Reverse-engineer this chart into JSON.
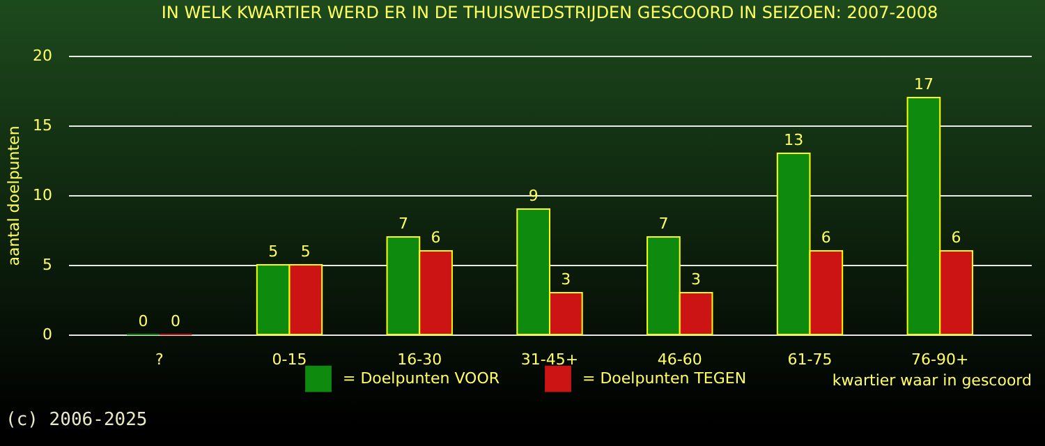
{
  "chart_data": {
    "type": "bar",
    "title": "IN WELK KWARTIER WERD ER IN DE THUISWEDSTRIJDEN GESCOORD IN SEIZOEN: 2007-2008",
    "xlabel": "kwartier waar in gescoord",
    "ylabel": "aantal doelpunten",
    "categories": [
      "?",
      "0-15",
      "16-30",
      "31-45+",
      "46-60",
      "61-75",
      "76-90+"
    ],
    "series": [
      {
        "name": "= Doelpunten VOOR",
        "color": "#0e8a0e",
        "values": [
          0,
          5,
          7,
          9,
          7,
          13,
          17
        ]
      },
      {
        "name": "= Doelpunten TEGEN",
        "color": "#cc1414",
        "values": [
          0,
          5,
          6,
          3,
          3,
          6,
          6
        ]
      }
    ],
    "ylim": [
      0,
      20
    ],
    "yticks": [
      0,
      5,
      10,
      15,
      20
    ],
    "grid": "y",
    "legend": "bottom",
    "data_labels": true,
    "annotations": [
      "(c) 2006-2025"
    ]
  }
}
